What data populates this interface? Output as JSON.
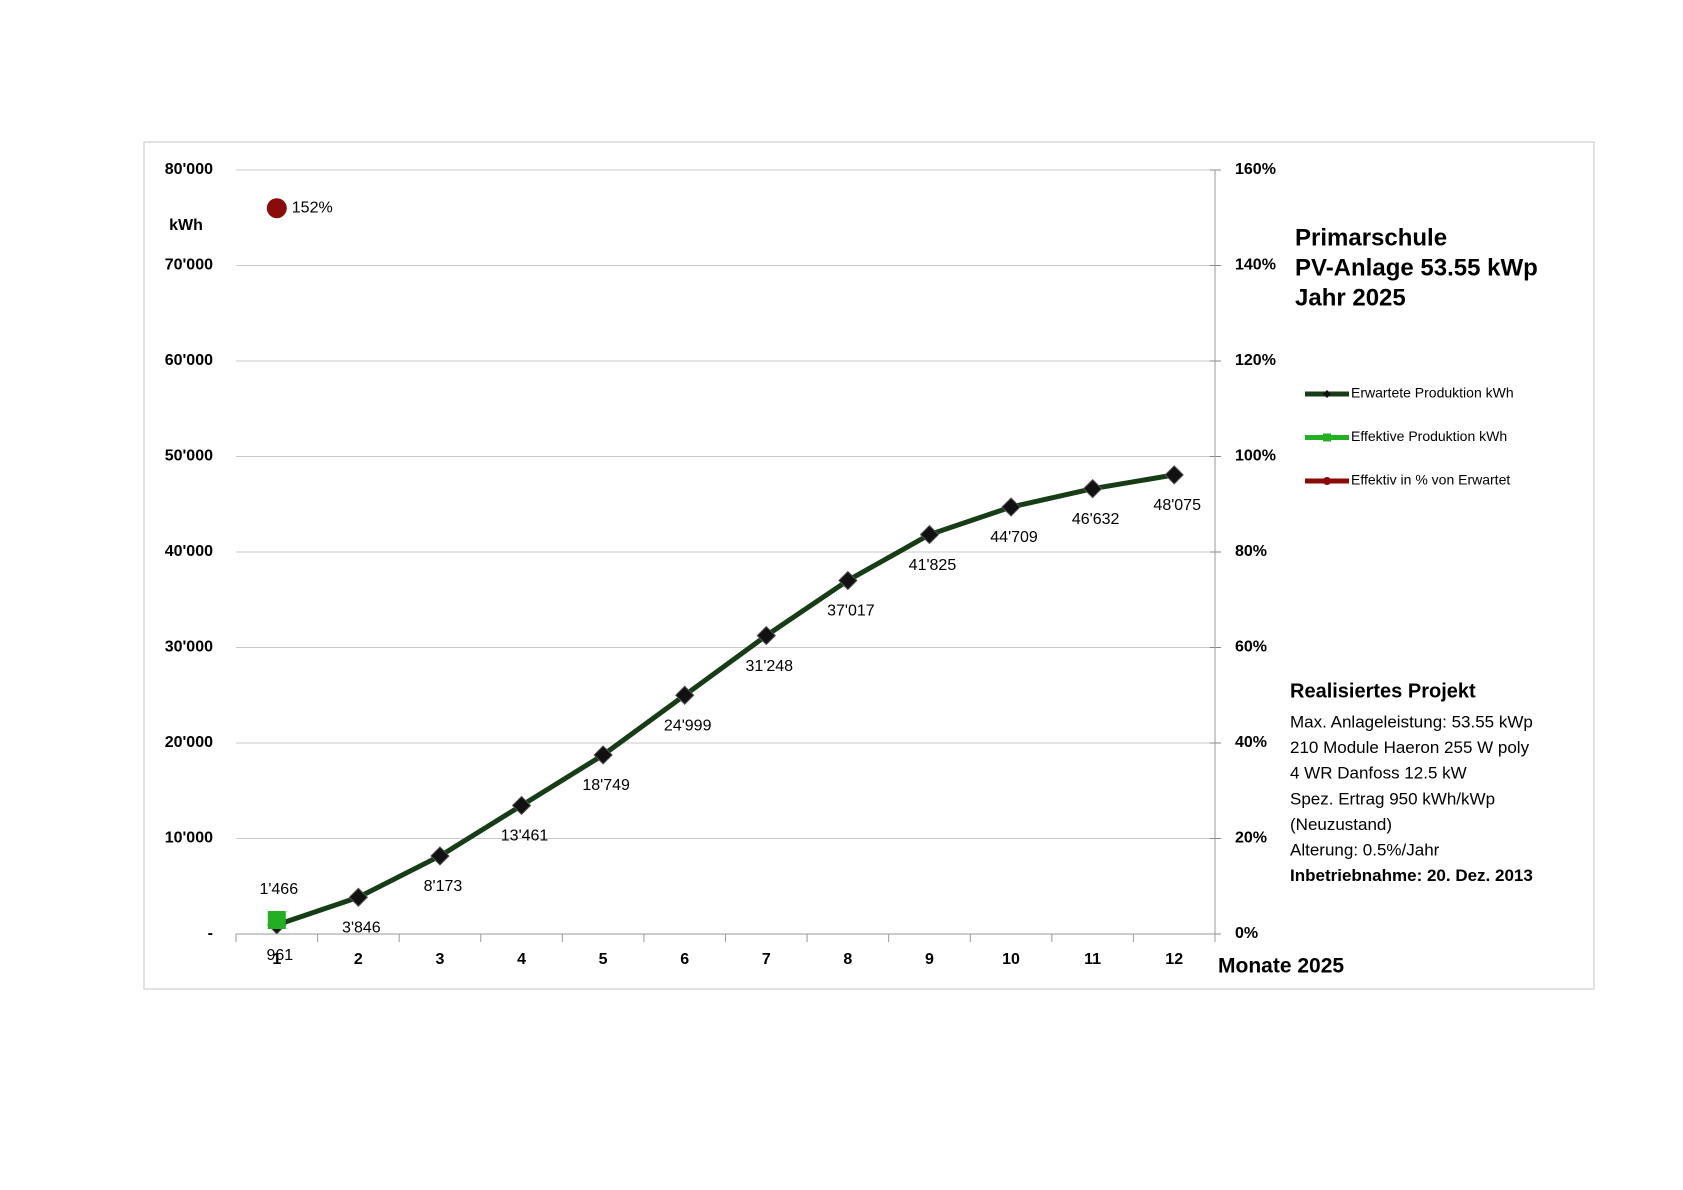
{
  "chart_data": {
    "type": "line",
    "title": [
      "Primarschule",
      "PV-Anlage 53.55 kWp",
      "Jahr 2025"
    ],
    "y_label": "kWh",
    "x_label": "Monate 2025",
    "categories": [
      "1",
      "2",
      "3",
      "4",
      "5",
      "6",
      "7",
      "8",
      "9",
      "10",
      "11",
      "12"
    ],
    "series": [
      {
        "name": "Erwartete Produktion kWh",
        "color": "#173d17",
        "marker": "diamond",
        "marker_color": "#111111",
        "values": [
          961,
          3846,
          8173,
          13461,
          18749,
          24999,
          31248,
          37017,
          41825,
          44709,
          46632,
          48075
        ],
        "value_labels": [
          "961",
          "3'846",
          "8'173",
          "13'461",
          "18'749",
          "24'999",
          "31'248",
          "37'017",
          "41'825",
          "44'709",
          "46'632",
          "48'075"
        ]
      },
      {
        "name": "Effektive Produktion kWh",
        "color": "#22b022",
        "marker": "square",
        "marker_color": "#22b022",
        "values": [
          1466,
          null,
          null,
          null,
          null,
          null,
          null,
          null,
          null,
          null,
          null,
          null
        ],
        "value_labels": [
          "1'466",
          null,
          null,
          null,
          null,
          null,
          null,
          null,
          null,
          null,
          null,
          null
        ]
      },
      {
        "name": "Effektiv in % von Erwartet",
        "color": "#8b0a0a",
        "marker": "circle",
        "marker_color": "#8b0a0a",
        "axis": "y2",
        "values": [
          152,
          null,
          null,
          null,
          null,
          null,
          null,
          null,
          null,
          null,
          null,
          null
        ],
        "value_labels": [
          "152%",
          null,
          null,
          null,
          null,
          null,
          null,
          null,
          null,
          null,
          null,
          null
        ]
      }
    ],
    "ylim": [
      0,
      80000
    ],
    "yticks": [
      {
        "value": 0,
        "label": "-"
      },
      {
        "value": 10000,
        "label": "10'000"
      },
      {
        "value": 20000,
        "label": "20'000"
      },
      {
        "value": 30000,
        "label": "30'000"
      },
      {
        "value": 40000,
        "label": "40'000"
      },
      {
        "value": 50000,
        "label": "50'000"
      },
      {
        "value": 60000,
        "label": "60'000"
      },
      {
        "value": 70000,
        "label": "70'000"
      },
      {
        "value": 80000,
        "label": "80'000"
      }
    ],
    "y2lim": [
      0,
      160
    ],
    "y2ticks": [
      {
        "value": 0,
        "label": "0%"
      },
      {
        "value": 20,
        "label": "20%"
      },
      {
        "value": 40,
        "label": "40%"
      },
      {
        "value": 60,
        "label": "60%"
      },
      {
        "value": 80,
        "label": "80%"
      },
      {
        "value": 100,
        "label": "100%"
      },
      {
        "value": 120,
        "label": "120%"
      },
      {
        "value": 140,
        "label": "140%"
      },
      {
        "value": 160,
        "label": "160%"
      }
    ],
    "grid": true,
    "legend": "right",
    "notes_title": "Realisiertes Projekt",
    "notes": [
      "Max. Anlageleistung: 53.55 kWp",
      "210 Module Haeron 255 W poly",
      "4 WR Danfoss 12.5 kW",
      "Spez. Ertrag 950 kWh/kWp",
      "(Neuzustand)",
      "Alterung: 0.5%/Jahr",
      "Inbetriebnahme: 20. Dez. 2013"
    ]
  }
}
